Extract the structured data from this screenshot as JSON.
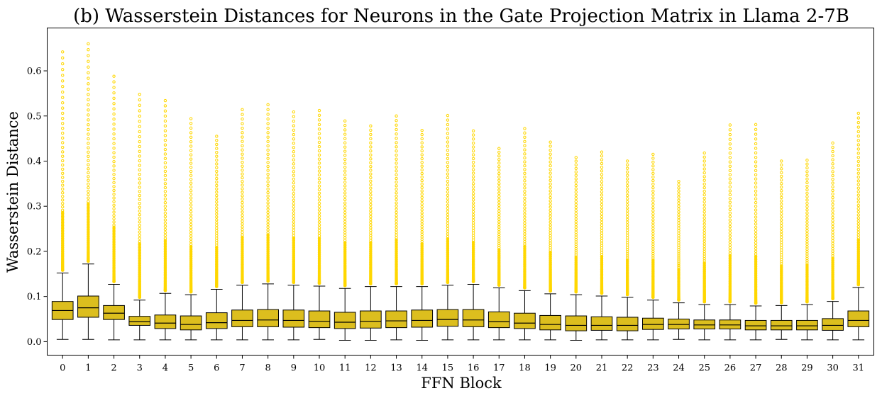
{
  "chart_data": {
    "type": "box",
    "title": "(b) Wasserstein Distances for Neurons in the Gate Projection Matrix in Llama 2-7B",
    "xlabel": "FFN Block",
    "ylabel": "Wasserstein Distance",
    "ylim": [
      -0.03,
      0.695
    ],
    "yticks": [
      "0.0",
      "0.1",
      "0.2",
      "0.3",
      "0.4",
      "0.5",
      "0.6"
    ],
    "grid": false,
    "colors": {
      "box": "#dcbe1e",
      "outlier": "#ffd700",
      "edge": "#000000"
    },
    "categories": [
      "0",
      "1",
      "2",
      "3",
      "4",
      "5",
      "6",
      "7",
      "8",
      "9",
      "10",
      "11",
      "12",
      "13",
      "14",
      "15",
      "16",
      "17",
      "18",
      "19",
      "20",
      "21",
      "22",
      "23",
      "24",
      "25",
      "26",
      "27",
      "28",
      "29",
      "30",
      "31"
    ],
    "boxes": [
      {
        "q1": 0.049,
        "median": 0.069,
        "q3": 0.089,
        "whisker_low": 0.005,
        "whisker_high": 0.152,
        "outlier_max": 0.642
      },
      {
        "q1": 0.054,
        "median": 0.075,
        "q3": 0.101,
        "whisker_low": 0.005,
        "whisker_high": 0.172,
        "outlier_max": 0.66
      },
      {
        "q1": 0.049,
        "median": 0.063,
        "q3": 0.08,
        "whisker_low": 0.004,
        "whisker_high": 0.127,
        "outlier_max": 0.588
      },
      {
        "q1": 0.036,
        "median": 0.044,
        "q3": 0.056,
        "whisker_low": 0.004,
        "whisker_high": 0.092,
        "outlier_max": 0.548
      },
      {
        "q1": 0.029,
        "median": 0.041,
        "q3": 0.059,
        "whisker_low": 0.004,
        "whisker_high": 0.107,
        "outlier_max": 0.534
      },
      {
        "q1": 0.026,
        "median": 0.038,
        "q3": 0.057,
        "whisker_low": 0.004,
        "whisker_high": 0.104,
        "outlier_max": 0.494
      },
      {
        "q1": 0.029,
        "median": 0.042,
        "q3": 0.064,
        "whisker_low": 0.004,
        "whisker_high": 0.116,
        "outlier_max": 0.455
      },
      {
        "q1": 0.033,
        "median": 0.047,
        "q3": 0.07,
        "whisker_low": 0.004,
        "whisker_high": 0.125,
        "outlier_max": 0.514
      },
      {
        "q1": 0.033,
        "median": 0.048,
        "q3": 0.071,
        "whisker_low": 0.004,
        "whisker_high": 0.128,
        "outlier_max": 0.525
      },
      {
        "q1": 0.032,
        "median": 0.047,
        "q3": 0.07,
        "whisker_low": 0.004,
        "whisker_high": 0.125,
        "outlier_max": 0.509
      },
      {
        "q1": 0.031,
        "median": 0.045,
        "q3": 0.068,
        "whisker_low": 0.005,
        "whisker_high": 0.123,
        "outlier_max": 0.512
      },
      {
        "q1": 0.029,
        "median": 0.043,
        "q3": 0.065,
        "whisker_low": 0.003,
        "whisker_high": 0.118,
        "outlier_max": 0.489
      },
      {
        "q1": 0.03,
        "median": 0.045,
        "q3": 0.068,
        "whisker_low": 0.003,
        "whisker_high": 0.122,
        "outlier_max": 0.478
      },
      {
        "q1": 0.031,
        "median": 0.046,
        "q3": 0.068,
        "whisker_low": 0.004,
        "whisker_high": 0.122,
        "outlier_max": 0.5
      },
      {
        "q1": 0.032,
        "median": 0.047,
        "q3": 0.07,
        "whisker_low": 0.003,
        "whisker_high": 0.122,
        "outlier_max": 0.468
      },
      {
        "q1": 0.034,
        "median": 0.049,
        "q3": 0.071,
        "whisker_low": 0.004,
        "whisker_high": 0.125,
        "outlier_max": 0.501
      },
      {
        "q1": 0.033,
        "median": 0.048,
        "q3": 0.071,
        "whisker_low": 0.004,
        "whisker_high": 0.127,
        "outlier_max": 0.467
      },
      {
        "q1": 0.031,
        "median": 0.044,
        "q3": 0.066,
        "whisker_low": 0.004,
        "whisker_high": 0.119,
        "outlier_max": 0.428
      },
      {
        "q1": 0.029,
        "median": 0.041,
        "q3": 0.063,
        "whisker_low": 0.004,
        "whisker_high": 0.113,
        "outlier_max": 0.472
      },
      {
        "q1": 0.026,
        "median": 0.038,
        "q3": 0.058,
        "whisker_low": 0.004,
        "whisker_high": 0.106,
        "outlier_max": 0.442
      },
      {
        "q1": 0.024,
        "median": 0.036,
        "q3": 0.057,
        "whisker_low": 0.003,
        "whisker_high": 0.104,
        "outlier_max": 0.408
      },
      {
        "q1": 0.025,
        "median": 0.036,
        "q3": 0.055,
        "whisker_low": 0.004,
        "whisker_high": 0.101,
        "outlier_max": 0.42
      },
      {
        "q1": 0.024,
        "median": 0.036,
        "q3": 0.054,
        "whisker_low": 0.004,
        "whisker_high": 0.098,
        "outlier_max": 0.4
      },
      {
        "q1": 0.027,
        "median": 0.038,
        "q3": 0.052,
        "whisker_low": 0.004,
        "whisker_high": 0.092,
        "outlier_max": 0.415
      },
      {
        "q1": 0.028,
        "median": 0.038,
        "q3": 0.05,
        "whisker_low": 0.005,
        "whisker_high": 0.086,
        "outlier_max": 0.355
      },
      {
        "q1": 0.028,
        "median": 0.037,
        "q3": 0.048,
        "whisker_low": 0.004,
        "whisker_high": 0.082,
        "outlier_max": 0.418
      },
      {
        "q1": 0.028,
        "median": 0.037,
        "q3": 0.048,
        "whisker_low": 0.004,
        "whisker_high": 0.082,
        "outlier_max": 0.48
      },
      {
        "q1": 0.026,
        "median": 0.035,
        "q3": 0.047,
        "whisker_low": 0.004,
        "whisker_high": 0.079,
        "outlier_max": 0.481
      },
      {
        "q1": 0.026,
        "median": 0.035,
        "q3": 0.047,
        "whisker_low": 0.005,
        "whisker_high": 0.08,
        "outlier_max": 0.4
      },
      {
        "q1": 0.026,
        "median": 0.035,
        "q3": 0.047,
        "whisker_low": 0.004,
        "whisker_high": 0.082,
        "outlier_max": 0.402
      },
      {
        "q1": 0.025,
        "median": 0.036,
        "q3": 0.051,
        "whisker_low": 0.004,
        "whisker_high": 0.089,
        "outlier_max": 0.44
      },
      {
        "q1": 0.033,
        "median": 0.047,
        "q3": 0.068,
        "whisker_low": 0.004,
        "whisker_high": 0.12,
        "outlier_max": 0.506
      }
    ]
  }
}
